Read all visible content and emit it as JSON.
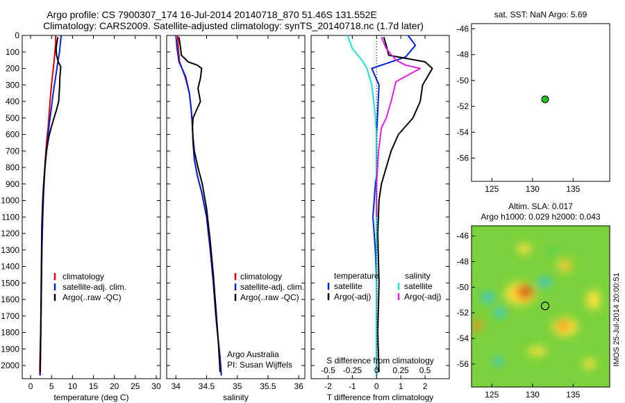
{
  "header": {
    "title_line1": "Argo profile: CS 7900307_174 16-Jul-2014 20140718_870 51.46S 131.552E",
    "title_line2": "Climatology: CARS2009. Satellite-adjusted climatology: synTS_20140718.nc (1.7d later)"
  },
  "colors": {
    "climatology": "#e00000",
    "satellite": "#0020e0",
    "argo": "#000000",
    "sal_satellite": "#20e0e0",
    "sal_argo": "#e020e0",
    "marker": "#20c020"
  },
  "chart_data": [
    {
      "id": "temperature",
      "type": "line",
      "xlabel": "temperature (deg C)",
      "ylabel": "",
      "xlim": [
        -2,
        31
      ],
      "ylim": [
        0,
        2080
      ],
      "xticks": [
        "0",
        "5",
        "10",
        "15",
        "20",
        "25",
        "30"
      ],
      "xtick_values": [
        0,
        5,
        10,
        15,
        20,
        25,
        30
      ],
      "yticks": [
        "0",
        "100",
        "200",
        "300",
        "400",
        "500",
        "600",
        "700",
        "800",
        "900",
        "1000",
        "1100",
        "1200",
        "1300",
        "1400",
        "1500",
        "1600",
        "1700",
        "1800",
        "1900",
        "2000"
      ],
      "ytick_values": [
        0,
        100,
        200,
        300,
        400,
        500,
        600,
        700,
        800,
        900,
        1000,
        1100,
        1200,
        1300,
        1400,
        1500,
        1600,
        1700,
        1800,
        1900,
        2000
      ],
      "legend": [
        "climatology",
        "satellite-adj. clim.",
        "Argo(..raw -QC)"
      ],
      "series": [
        {
          "name": "climatology",
          "color_key": "climatology",
          "x": [
            6.0,
            6.0,
            5.8,
            5.6,
            5.2,
            4.8,
            4.5,
            4.2,
            3.8,
            3.5,
            3.3,
            3.1,
            2.9,
            2.7,
            2.6,
            2.5,
            2.4,
            2.3,
            2.2,
            2.2
          ],
          "y": [
            0,
            50,
            100,
            160,
            250,
            350,
            450,
            550,
            650,
            750,
            850,
            950,
            1100,
            1300,
            1500,
            1700,
            1800,
            1900,
            2000,
            2060
          ]
        },
        {
          "name": "satellite-adj. clim.",
          "color_key": "satellite",
          "x": [
            7.3,
            7.1,
            6.9,
            6.5,
            6.0,
            5.4,
            4.9,
            4.4,
            4.0,
            3.6,
            3.3,
            3.1,
            2.9,
            2.7,
            2.6,
            2.5,
            2.4,
            2.3
          ],
          "y": [
            0,
            50,
            100,
            160,
            250,
            350,
            450,
            550,
            650,
            750,
            850,
            950,
            1100,
            1300,
            1500,
            1700,
            1900,
            2060
          ]
        },
        {
          "name": "Argo(..raw -QC)",
          "color_key": "argo",
          "x": [
            6.5,
            6.3,
            6.1,
            6.2,
            6.6,
            7.2,
            7.0,
            6.9,
            6.7,
            6.2,
            5.6,
            4.9,
            4.3,
            3.8,
            3.4,
            3.1,
            2.9,
            2.7,
            2.6,
            2.5,
            2.4,
            2.3
          ],
          "y": [
            10,
            40,
            80,
            120,
            160,
            190,
            250,
            320,
            400,
            450,
            500,
            560,
            620,
            700,
            800,
            900,
            1000,
            1150,
            1350,
            1600,
            1850,
            2040
          ]
        }
      ]
    },
    {
      "id": "salinity",
      "type": "line",
      "xlabel": "salinity",
      "ylabel": "",
      "xlim": [
        33.85,
        36.1
      ],
      "ylim": [
        0,
        2080
      ],
      "xticks": [
        "34",
        "34.5",
        "35",
        "35.5",
        "36"
      ],
      "xtick_values": [
        34,
        34.5,
        35,
        35.5,
        36
      ],
      "legend": [
        "climatology",
        "satellite-adj. clim.",
        "Argo(..raw -QC)"
      ],
      "annotation": [
        "Argo Australia",
        "PI: Susan Wijffels"
      ],
      "series": [
        {
          "name": "climatology",
          "color_key": "climatology",
          "x": [
            34.03,
            34.04,
            34.06,
            34.1,
            34.15,
            34.22,
            34.25,
            34.27,
            34.28,
            34.3,
            34.35,
            34.42,
            34.5,
            34.56,
            34.61,
            34.65,
            34.69,
            34.72,
            34.74
          ],
          "y": [
            0,
            80,
            160,
            200,
            250,
            350,
            450,
            550,
            650,
            750,
            850,
            950,
            1100,
            1300,
            1500,
            1700,
            1850,
            1950,
            2060
          ]
        },
        {
          "name": "satellite-adj. clim.",
          "color_key": "satellite",
          "x": [
            34.0,
            34.02,
            34.05,
            34.1,
            34.16,
            34.22,
            34.25,
            34.27,
            34.28,
            34.3,
            34.35,
            34.42,
            34.5,
            34.56,
            34.61,
            34.65,
            34.69,
            34.72,
            34.74
          ],
          "y": [
            0,
            80,
            160,
            200,
            250,
            350,
            450,
            550,
            650,
            750,
            850,
            950,
            1100,
            1300,
            1500,
            1700,
            1850,
            1950,
            2060
          ]
        },
        {
          "name": "Argo(..raw -QC)",
          "color_key": "argo",
          "x": [
            34.05,
            34.07,
            34.09,
            34.2,
            34.35,
            34.42,
            34.4,
            34.36,
            34.4,
            34.34,
            34.28,
            34.27,
            34.28,
            34.3,
            34.36,
            34.43,
            34.5,
            34.56,
            34.61,
            34.65,
            34.69,
            34.72
          ],
          "y": [
            10,
            60,
            120,
            160,
            180,
            200,
            260,
            320,
            400,
            450,
            500,
            560,
            620,
            700,
            800,
            900,
            1050,
            1250,
            1450,
            1650,
            1850,
            2040
          ]
        }
      ]
    },
    {
      "id": "difference",
      "type": "line",
      "xlabel": "T difference from climatology",
      "xlabel_top": "S difference from climatology",
      "xlim": [
        -2.7,
        3.0
      ],
      "ylim": [
        0,
        2080
      ],
      "xticks": [
        "-2",
        "-1",
        "0",
        "1",
        "2"
      ],
      "xtick_values": [
        -2,
        -1,
        0,
        1,
        2
      ],
      "xticks_top": [
        "-0.5",
        "-0.25",
        "0",
        "0.25",
        "0.5"
      ],
      "xtick_top_values": [
        -0.5,
        -0.25,
        0,
        0.25,
        0.5
      ],
      "legend_left_title": "temperature",
      "legend_right_title": "salinity",
      "legend_left": [
        "satellite",
        "Argo(-adj)"
      ],
      "legend_right": [
        "satellite",
        "Argo(-adj)"
      ],
      "series": [
        {
          "name": "T satellite",
          "color_key": "satellite",
          "x": [
            1.3,
            1.6,
            1.2,
            0.4,
            -0.2,
            0.1,
            0.05,
            0.0,
            0.0,
            0.0,
            -0.05,
            -0.1,
            -0.15,
            -0.1,
            -0.05,
            0.0,
            0.0,
            0.0
          ],
          "y": [
            0,
            60,
            130,
            170,
            200,
            300,
            450,
            600,
            750,
            850,
            900,
            1000,
            1100,
            1200,
            1300,
            1500,
            1800,
            2060
          ]
        },
        {
          "name": "T Argo(-adj)",
          "color_key": "argo",
          "x": [
            0.3,
            0.4,
            0.5,
            2.0,
            2.3,
            1.9,
            1.8,
            1.5,
            1.2,
            0.9,
            0.6,
            0.4,
            0.2,
            0.1,
            0.05,
            0.1,
            0.05,
            0.1
          ],
          "y": [
            10,
            60,
            120,
            160,
            200,
            300,
            400,
            500,
            550,
            600,
            700,
            800,
            900,
            1000,
            1200,
            1500,
            1800,
            2040
          ]
        },
        {
          "name": "S satellite",
          "color_key": "sal_satellite",
          "x": [
            -0.3,
            -0.25,
            -0.15,
            -0.1,
            -0.05,
            -0.02,
            0.0,
            0.0,
            0.0,
            0.0,
            0.0
          ],
          "y": [
            0,
            80,
            150,
            200,
            300,
            450,
            600,
            800,
            1200,
            1600,
            2060
          ]
        },
        {
          "name": "S Argo(-adj)",
          "color_key": "sal_argo",
          "x": [
            0.05,
            0.1,
            0.2,
            0.3,
            0.45,
            0.2,
            0.15,
            0.1,
            0.05,
            0.02,
            0.0,
            0.0
          ],
          "y": [
            10,
            80,
            150,
            180,
            200,
            280,
            400,
            500,
            560,
            700,
            900,
            1100
          ]
        }
      ]
    },
    {
      "id": "sst_map",
      "type": "scatter",
      "title": "sat. SST: NaN Argo: 5.69",
      "xlim": [
        122.5,
        139.5
      ],
      "ylim": [
        -57.8,
        -45.6
      ],
      "xticks": [
        "125",
        "130",
        "135"
      ],
      "xtick_values": [
        125,
        130,
        135
      ],
      "yticks": [
        "-46",
        "-48",
        "-50",
        "-52",
        "-54",
        "-56"
      ],
      "ytick_values": [
        -46,
        -48,
        -50,
        -52,
        -54,
        -56
      ],
      "x": [
        131.552
      ],
      "y": [
        -51.46
      ]
    },
    {
      "id": "sla_map",
      "type": "heatmap",
      "title_line1": "Altim. SLA: 0.017",
      "title_line2": "Argo h1000: 0.029 h2000: 0.043",
      "side_label": "IMOS 25-Jul-2014 20:00:51",
      "xlim": [
        122.5,
        139.5
      ],
      "ylim": [
        -57.8,
        -45.2
      ],
      "xticks": [
        "125",
        "130",
        "135"
      ],
      "xtick_values": [
        125,
        130,
        135
      ],
      "yticks": [
        "-46",
        "-48",
        "-50",
        "-52",
        "-54",
        "-56"
      ],
      "ytick_values": [
        -46,
        -48,
        -50,
        -52,
        -54,
        -56
      ],
      "x": [
        131.552
      ],
      "y": [
        -51.46
      ]
    }
  ]
}
